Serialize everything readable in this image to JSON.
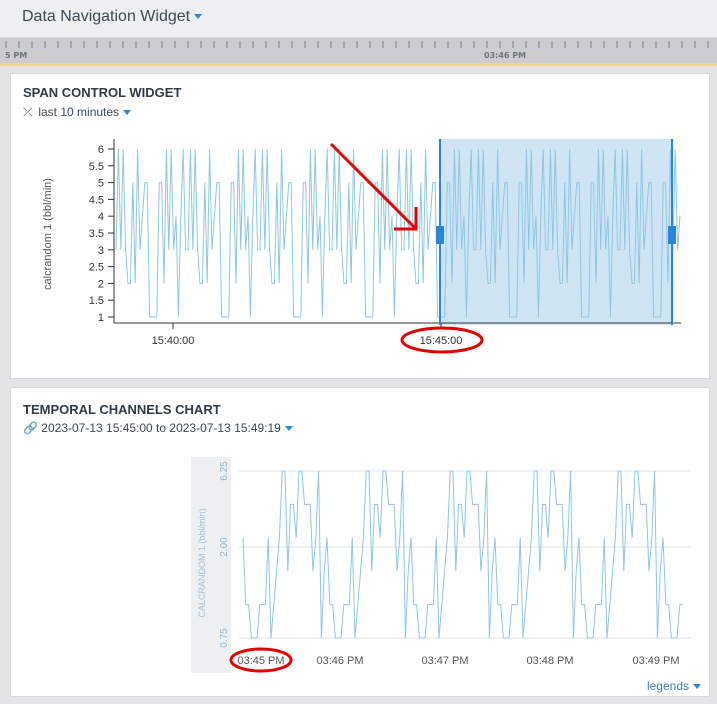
{
  "titlebar": {
    "title": "Data Navigation Widget"
  },
  "timeline": {
    "left_label": "5 PM",
    "marker_label": "03:46 PM"
  },
  "span_widget": {
    "title": "SPAN CONTROL WIDGET",
    "range_label": "last 10 minutes",
    "chart_data": {
      "type": "line",
      "ylabel": "calcrandom 1 (bbl/min)",
      "yticks": [
        "1",
        "1.5",
        "2",
        "2.5",
        "3",
        "3.5",
        "4",
        "4.5",
        "5",
        "5.5",
        "6"
      ],
      "xticks": [
        "15:40:00",
        "15:45:00"
      ],
      "ylim": [
        1,
        6
      ],
      "series": [
        {
          "color": "#8fc6e6",
          "values": [
            3,
            5,
            1,
            6,
            3,
            2,
            5,
            6,
            1,
            4,
            3,
            6,
            2,
            5,
            3,
            1,
            6,
            4,
            3,
            5,
            2,
            6,
            1,
            3,
            5,
            4,
            2,
            6,
            3,
            1
          ]
        }
      ],
      "selection": {
        "from": "15:45:00",
        "to": "15:49:19"
      }
    }
  },
  "temporal": {
    "title": "TEMPORAL CHANNELS CHART",
    "range_label": "2023-07-13 15:45:00 to 2023-07-13 15:49:19",
    "legends_label": "legends",
    "chart_data": {
      "type": "line",
      "ylabel": "CALCRANDOM 1 (bbl/min)",
      "yticks": [
        "0.75",
        "2.00",
        "6.25"
      ],
      "xticks": [
        "03:45 PM",
        "03:46 PM",
        "03:47 PM",
        "03:48 PM",
        "03:49 PM"
      ],
      "series": [
        {
          "color": "#8fc6e6",
          "values": [
            4,
            2,
            5,
            1,
            6,
            3,
            2,
            5,
            1,
            4,
            6,
            2,
            3,
            5,
            1,
            6,
            4,
            2,
            5,
            3,
            1,
            6,
            2,
            4,
            5,
            1,
            3,
            6,
            2,
            4
          ]
        }
      ]
    }
  },
  "colors": {
    "accent": "#2a86d6",
    "annotation": "#e00000",
    "line": "#8fc6e6",
    "selection": "#cfe5f3"
  }
}
